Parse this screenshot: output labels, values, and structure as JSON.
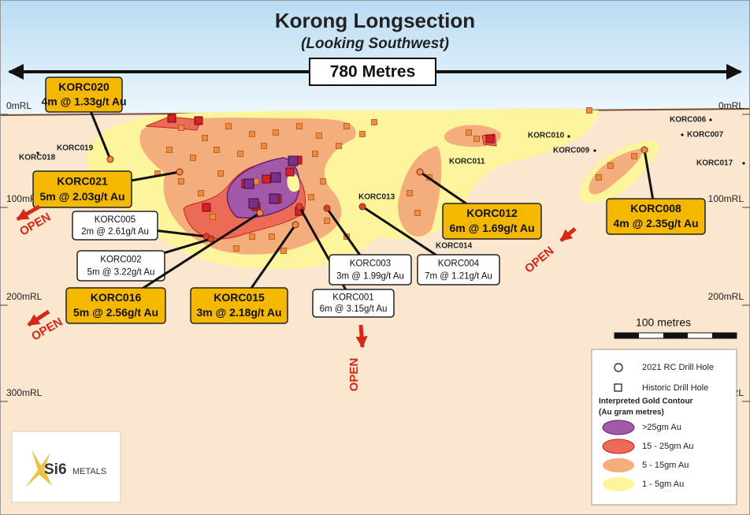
{
  "title": "Korong Longsection",
  "subtitle": "(Looking Southwest)",
  "width_label": "780 Metres",
  "rl_labels": [
    "0mRL",
    "100mRL",
    "200mRL",
    "300mRL"
  ],
  "intercepts": [
    {
      "hole": "KORC020",
      "result": "4m @ 1.33g/t Au"
    },
    {
      "hole": "KORC021",
      "result": "5m @ 2.03g/t Au"
    },
    {
      "hole": "KORC005",
      "result": "2m @ 2.61g/t Au"
    },
    {
      "hole": "KORC002",
      "result": "5m @ 3.22g/t Au"
    },
    {
      "hole": "KORC016",
      "result": "5m @ 2.56g/t Au"
    },
    {
      "hole": "KORC015",
      "result": "3m @ 2.18g/t Au"
    },
    {
      "hole": "KORC001",
      "result": "6m @ 3.15g/t Au"
    },
    {
      "hole": "KORC003",
      "result": "3m @ 1.99g/t Au"
    },
    {
      "hole": "KORC004",
      "result": "7m @ 1.21g/t Au"
    },
    {
      "hole": "KORC012",
      "result": "6m @ 1.69g/t Au"
    },
    {
      "hole": "KORC008",
      "result": "4m @ 2.35g/t Au"
    }
  ],
  "drill_holes": [
    "KORC019",
    "KORC018",
    "KORC013",
    "KORC014",
    "KORC011",
    "KORC010",
    "KORC009",
    "KORC006",
    "KORC007",
    "KORC017"
  ],
  "open_labels": [
    "OPEN",
    "OPEN",
    "OPEN",
    "OPEN"
  ],
  "scale_bar": "100 metres",
  "legend": {
    "items": [
      "2021 RC Drill Hole",
      "Historic Drill Hole"
    ],
    "contour_title": "Interpreted Gold Contour",
    "contour_subtitle": "(Au gram metres)",
    "contours": [
      ">25gm Au",
      "15 - 25gm Au",
      "5 - 15gm Au",
      "1 - 5gm Au"
    ]
  },
  "logo": {
    "mark": "Si6",
    "name": "METALS"
  }
}
